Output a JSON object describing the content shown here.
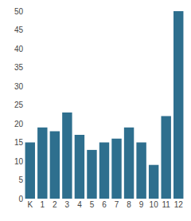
{
  "chart_data": {
    "type": "bar",
    "categories": [
      "K",
      "1",
      "2",
      "3",
      "4",
      "5",
      "6",
      "7",
      "8",
      "9",
      "10",
      "11",
      "12"
    ],
    "values": [
      15,
      19,
      18,
      23,
      17,
      13,
      15,
      16,
      19,
      15,
      9,
      22,
      50
    ],
    "color": "#2e6f8e",
    "ylim": [
      0,
      50
    ],
    "yticks": [
      0,
      5,
      10,
      15,
      20,
      25,
      30,
      35,
      40,
      45,
      50
    ],
    "grid": false
  }
}
